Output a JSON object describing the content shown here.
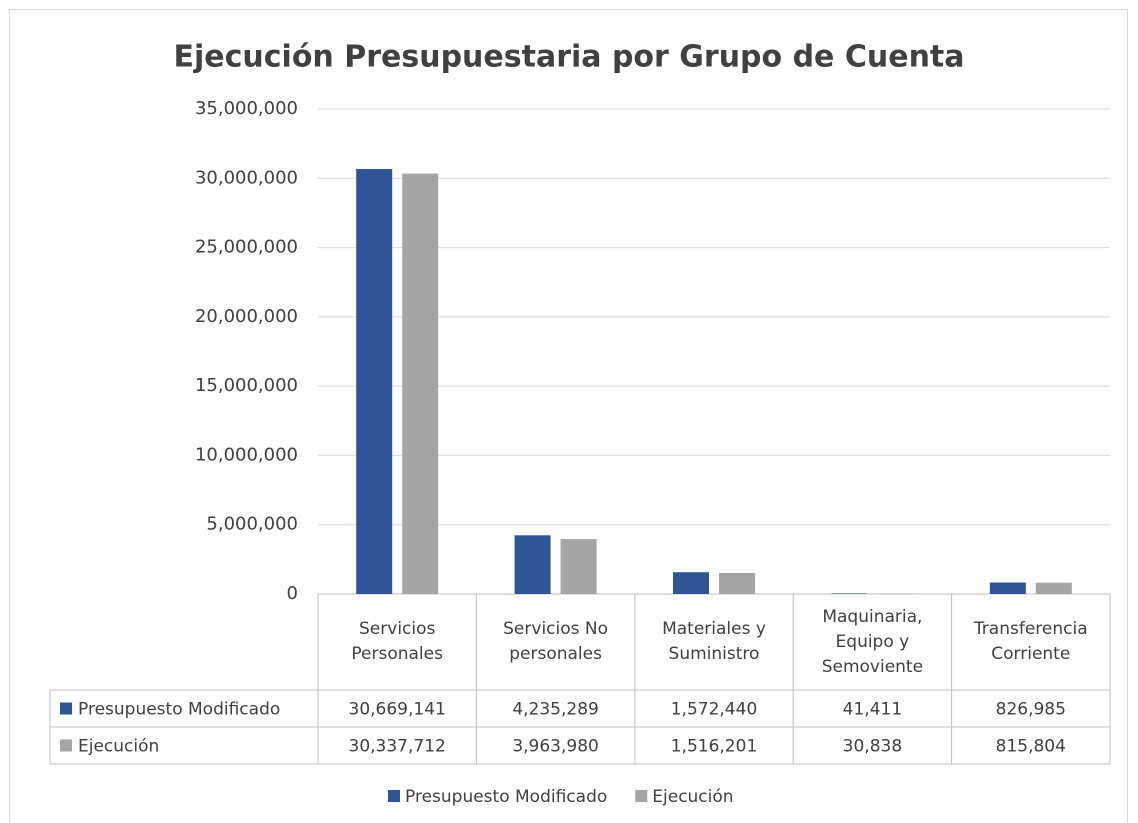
{
  "chart_data": {
    "type": "bar",
    "title": "Ejecución Presupuestaria por Grupo de Cuenta",
    "categories": [
      "Servicios Personales",
      "Servicios No personales",
      "Materiales y Suministro",
      "Maquinaria, Equipo y Semoviente",
      "Transferencia Corriente"
    ],
    "series": [
      {
        "name": "Presupuesto Modificado",
        "color": "#2f5597",
        "values": [
          30669141,
          4235289,
          1572440,
          41411,
          826985
        ],
        "value_labels": [
          "30,669,141",
          "4,235,289",
          "1,572,440",
          "41,411",
          "826,985"
        ]
      },
      {
        "name": "Ejecución",
        "color": "#a5a5a5",
        "values": [
          30337712,
          3963980,
          1516201,
          30838,
          815804
        ],
        "value_labels": [
          "30,337,712",
          "3,963,980",
          "1,516,201",
          "30,838",
          "815,804"
        ]
      }
    ],
    "ylim": [
      0,
      35000000
    ],
    "yticks": [
      0,
      {
        "value": 5000000,
        "label": "5,000,000"
      },
      {
        "value": 10000000,
        "label": "10,000,000"
      },
      {
        "value": 15000000,
        "label": "15,000,000"
      },
      {
        "value": 20000000,
        "label": "20,000,000"
      },
      {
        "value": 25000000,
        "label": "25,000,000"
      },
      {
        "value": 30000000,
        "label": "30,000,000"
      },
      {
        "value": 35000000,
        "label": "35,000,000"
      }
    ],
    "grid": true,
    "legend": "bottom"
  }
}
